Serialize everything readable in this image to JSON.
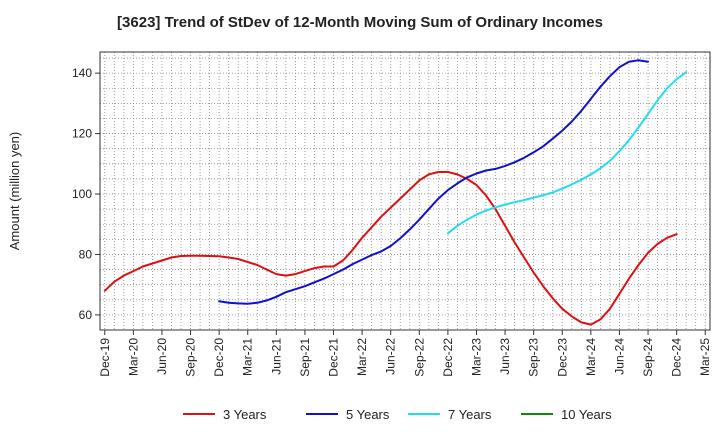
{
  "chart_data": {
    "type": "line",
    "title": "[3623]  Trend of StDev of 12-Month Moving Sum of Ordinary Incomes",
    "xlabel": "",
    "ylabel": "Amount (million yen)",
    "ylim": [
      55,
      147
    ],
    "yticks": [
      60,
      80,
      100,
      120,
      140
    ],
    "grid": true,
    "legend_position": "bottom",
    "x_start": "Dec-19",
    "x_months": 64,
    "xticks": [
      {
        "m": 0,
        "label": "Dec-19"
      },
      {
        "m": 3,
        "label": "Mar-20"
      },
      {
        "m": 6,
        "label": "Jun-20"
      },
      {
        "m": 9,
        "label": "Sep-20"
      },
      {
        "m": 12,
        "label": "Dec-20"
      },
      {
        "m": 15,
        "label": "Mar-21"
      },
      {
        "m": 18,
        "label": "Jun-21"
      },
      {
        "m": 21,
        "label": "Sep-21"
      },
      {
        "m": 24,
        "label": "Dec-21"
      },
      {
        "m": 27,
        "label": "Mar-22"
      },
      {
        "m": 30,
        "label": "Jun-22"
      },
      {
        "m": 33,
        "label": "Sep-22"
      },
      {
        "m": 36,
        "label": "Dec-22"
      },
      {
        "m": 39,
        "label": "Mar-23"
      },
      {
        "m": 42,
        "label": "Jun-23"
      },
      {
        "m": 45,
        "label": "Sep-23"
      },
      {
        "m": 48,
        "label": "Dec-23"
      },
      {
        "m": 51,
        "label": "Mar-24"
      },
      {
        "m": 54,
        "label": "Jun-24"
      },
      {
        "m": 57,
        "label": "Sep-24"
      },
      {
        "m": 60,
        "label": "Dec-24"
      },
      {
        "m": 63,
        "label": "Mar-25"
      }
    ],
    "series": [
      {
        "name": "3 Years",
        "color": "#dd1111",
        "start": 0,
        "values": [
          68,
          71,
          73,
          74.5,
          76,
          77,
          78,
          79,
          79.5,
          79.6,
          79.6,
          79.5,
          79.4,
          79,
          78.5,
          77.5,
          76.5,
          75,
          73.5,
          73,
          73.5,
          74.5,
          75.5,
          76,
          76,
          78,
          81.5,
          85.5,
          89,
          92.5,
          95.5,
          98.5,
          101.5,
          104.5,
          106.5,
          107.3,
          107.3,
          106.5,
          105,
          103,
          99.5,
          95,
          89.5,
          84,
          79,
          74,
          69.5,
          65.5,
          62,
          59.5,
          57.5,
          56.8,
          58.5,
          62,
          67,
          72,
          76.5,
          80.5,
          83.5,
          85.5,
          86.7
        ]
      },
      {
        "name": "5 Years",
        "color": "#1111cc",
        "start": 12,
        "values": [
          64.5,
          64,
          63.8,
          63.7,
          64,
          64.8,
          66,
          67.5,
          68.5,
          69.5,
          70.8,
          72,
          73.5,
          75,
          76.8,
          78.3,
          79.8,
          81,
          82.8,
          85.3,
          88.3,
          91.5,
          95,
          98.5,
          101.3,
          103.5,
          105.5,
          106.8,
          107.8,
          108.3,
          109.3,
          110.5,
          112,
          113.8,
          115.8,
          118.3,
          121,
          124,
          127.5,
          131.5,
          135.5,
          139,
          142,
          143.8,
          144.3,
          143.8
        ]
      },
      {
        "name": "7 Years",
        "color": "#22ddee",
        "start": 36,
        "values": [
          87,
          89.5,
          91.5,
          93.2,
          94.5,
          95.6,
          96.5,
          97.3,
          98,
          98.8,
          99.6,
          100.5,
          101.8,
          103.2,
          104.7,
          106.5,
          108.5,
          111,
          114.2,
          117.8,
          122,
          126.5,
          131,
          135,
          138,
          140.3
        ]
      },
      {
        "name": "10 Years",
        "color": "#118811",
        "start": 60,
        "values": []
      }
    ]
  }
}
